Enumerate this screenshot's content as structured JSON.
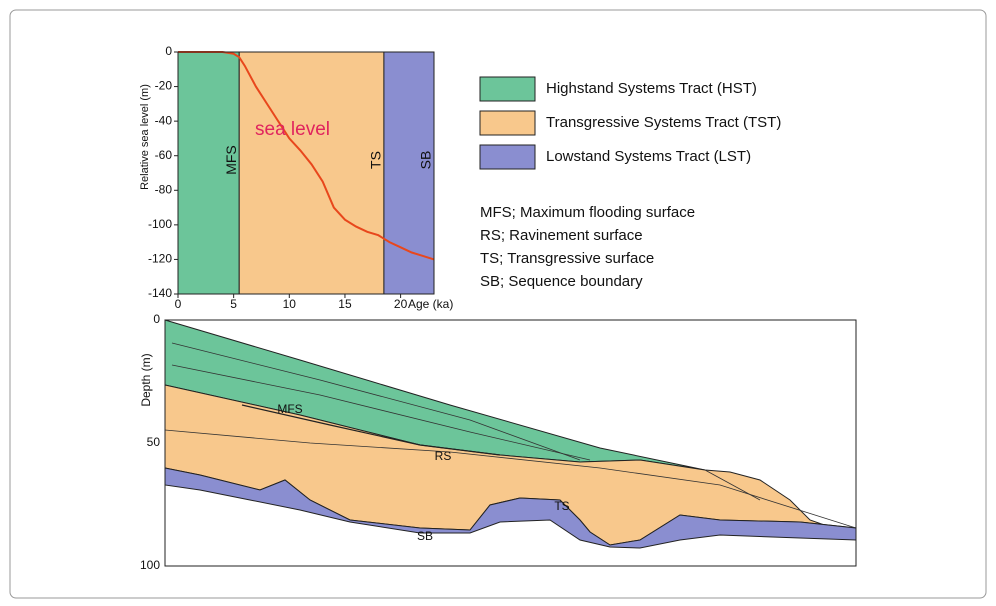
{
  "chart_data": {
    "type": "line",
    "x_label": "Age (ka)",
    "y_label": "Relative sea level (m)",
    "annotation": "sea level",
    "x": [
      0,
      2,
      4,
      5,
      5.5,
      6,
      7,
      8,
      9,
      10,
      11,
      12,
      13,
      14,
      15,
      16,
      17,
      18,
      18.5,
      19,
      20,
      21,
      22,
      23
    ],
    "series": [
      {
        "color": "#e8471c",
        "values": [
          0,
          0,
          0,
          -1,
          -3,
          -8,
          -20,
          -30,
          -40,
          -50,
          -57,
          -65,
          -75,
          -90,
          -97,
          -101,
          -104,
          -106,
          -108,
          -110,
          -113,
          -116,
          -118,
          -120
        ]
      }
    ],
    "xlim": [
      0,
      23
    ],
    "ylim": [
      -140,
      0
    ],
    "xticks": [
      0,
      5,
      10,
      15,
      20
    ],
    "yticks": [
      0,
      -20,
      -40,
      -60,
      -80,
      -100,
      -120,
      -140
    ],
    "bands": [
      {
        "from": 0,
        "to": 5.5,
        "color": "#6cc59a",
        "label": "MFS"
      },
      {
        "from": 5.5,
        "to": 18.5,
        "color": "#f8c88c",
        "label": "TS"
      },
      {
        "from": 18.5,
        "to": 23,
        "color": "#8a8ed0",
        "label": "SB"
      }
    ]
  },
  "legend": [
    {
      "label": "Highstand Systems Tract (HST)",
      "color": "#6cc59a"
    },
    {
      "label": "Transgressive Systems Tract (TST)",
      "color": "#f8c88c"
    },
    {
      "label": "Lowstand Systems Tract (LST)",
      "color": "#8a8ed0"
    }
  ],
  "notes": [
    "MFS; Maximum flooding surface",
    "RS; Ravinement surface",
    "TS; Transgressive surface",
    "SB; Sequence boundary"
  ],
  "cross_section": {
    "y_label": "Depth (m)",
    "depth_ticks": [
      0,
      50,
      100
    ],
    "labels": [
      "MFS",
      "RS",
      "TS",
      "SB"
    ]
  }
}
